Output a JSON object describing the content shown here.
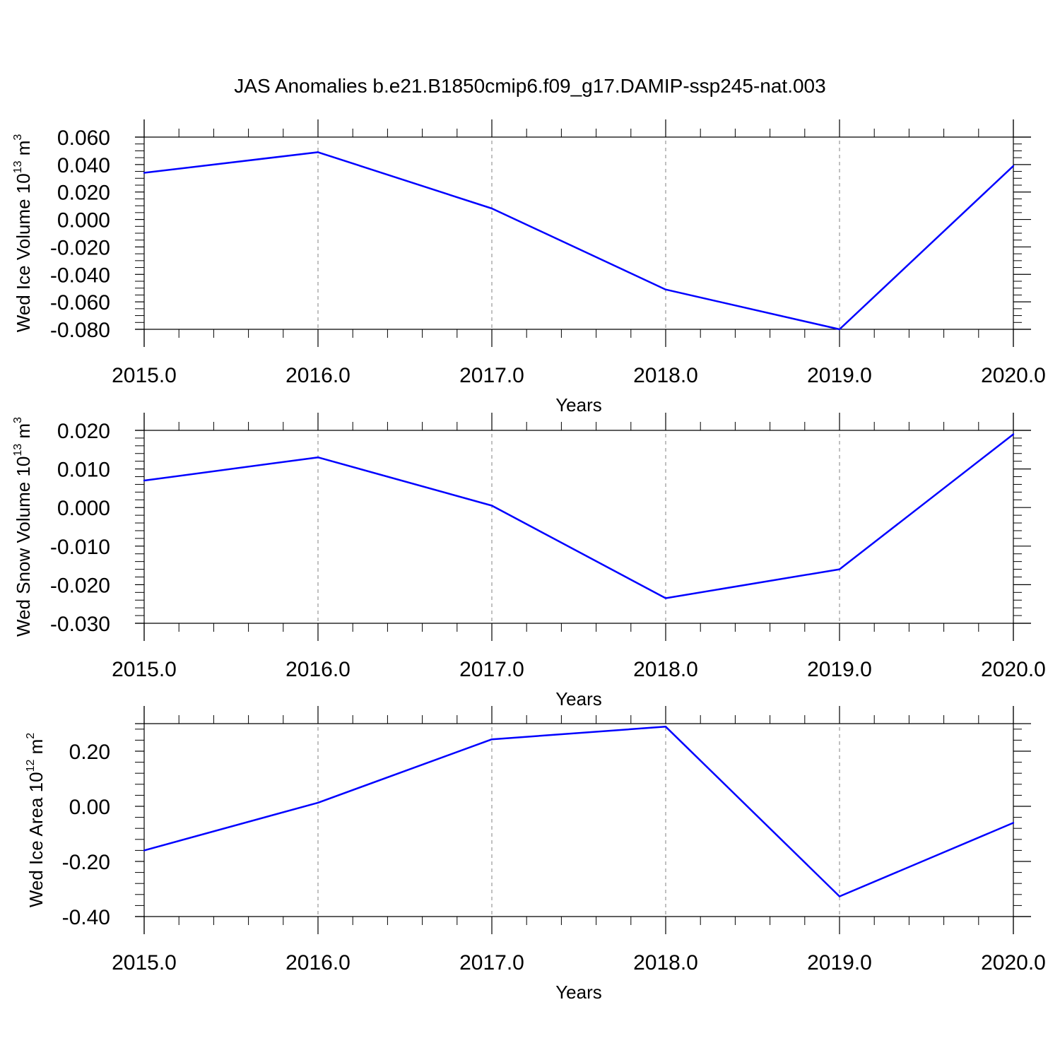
{
  "figure": {
    "title": "JAS Anomalies b.e21.B1850cmip6.f09_g17.DAMIP-ssp245-nat.003"
  },
  "colors": {
    "series": "#0000ff",
    "axis": "#000000",
    "grid": "#808080"
  },
  "chart_data": [
    {
      "type": "line",
      "ylabel": "Wed Ice Volume 10",
      "yunit_power": "13",
      "yunit_base": " m",
      "yunit_exp": "3",
      "xlabel": "Years",
      "grid": "vertical dashed at major x ticks",
      "xlim": [
        2015.0,
        2020.0
      ],
      "ylim": [
        -0.08,
        0.06
      ],
      "xticks": [
        2015.0,
        2016.0,
        2017.0,
        2018.0,
        2019.0,
        2020.0
      ],
      "xtick_labels": [
        "2015.0",
        "2016.0",
        "2017.0",
        "2018.0",
        "2019.0",
        "2020.0"
      ],
      "yticks": [
        0.06,
        0.04,
        0.02,
        0.0,
        -0.02,
        -0.04,
        -0.06,
        -0.08
      ],
      "ytick_labels": [
        "0.060",
        "0.040",
        "0.020",
        "0.000",
        "-0.020",
        "-0.040",
        "-0.060",
        "-0.080"
      ],
      "y_minor_step": 0.005,
      "x": [
        2015,
        2016,
        2017,
        2018,
        2019,
        2020
      ],
      "y": [
        0.034,
        0.049,
        0.008,
        -0.051,
        -0.08,
        0.039
      ]
    },
    {
      "type": "line",
      "ylabel": "Wed Snow Volume 10",
      "yunit_power": "13",
      "yunit_base": " m",
      "yunit_exp": "3",
      "xlabel": "Years",
      "grid": "vertical dashed at major x ticks",
      "xlim": [
        2015.0,
        2020.0
      ],
      "ylim": [
        -0.03,
        0.02
      ],
      "xticks": [
        2015.0,
        2016.0,
        2017.0,
        2018.0,
        2019.0,
        2020.0
      ],
      "xtick_labels": [
        "2015.0",
        "2016.0",
        "2017.0",
        "2018.0",
        "2019.0",
        "2020.0"
      ],
      "yticks": [
        0.02,
        0.01,
        0.0,
        -0.01,
        -0.02,
        -0.03
      ],
      "ytick_labels": [
        "0.020",
        "0.010",
        "0.000",
        "-0.010",
        "-0.020",
        "-0.030"
      ],
      "y_minor_step": 0.002,
      "x": [
        2015,
        2016,
        2017,
        2018,
        2019,
        2020
      ],
      "y": [
        0.007,
        0.013,
        0.0005,
        -0.0235,
        -0.016,
        0.019
      ]
    },
    {
      "type": "line",
      "ylabel": "Wed Ice Area 10",
      "yunit_power": "12",
      "yunit_base": " m",
      "yunit_exp": "2",
      "xlabel": "Years",
      "grid": "vertical dashed at major x ticks",
      "xlim": [
        2015.0,
        2020.0
      ],
      "ylim": [
        -0.4,
        0.3
      ],
      "xticks": [
        2015.0,
        2016.0,
        2017.0,
        2018.0,
        2019.0,
        2020.0
      ],
      "xtick_labels": [
        "2015.0",
        "2016.0",
        "2017.0",
        "2018.0",
        "2019.0",
        "2020.0"
      ],
      "yticks": [
        0.2,
        0.0,
        -0.2,
        -0.4
      ],
      "ytick_labels": [
        "0.20",
        "0.00",
        "-0.20",
        "-0.40"
      ],
      "y_minor_step": 0.04,
      "x": [
        2015,
        2016,
        2017,
        2018,
        2019,
        2020
      ],
      "y": [
        -0.16,
        0.013,
        0.243,
        0.289,
        -0.327,
        -0.06
      ]
    }
  ]
}
